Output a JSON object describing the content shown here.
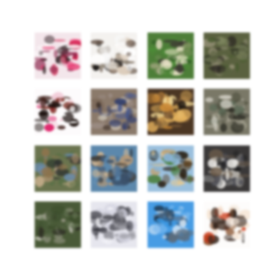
{
  "figure": {
    "description_name": "generated-samples-grid",
    "rows": 4,
    "cols": 4,
    "background": "#ffffff",
    "tiles": [
      {
        "id": "r1c1",
        "palette": [
          "#f4e9ee",
          "#c4123e",
          "#8a2d4f",
          "#e03d70",
          "#ffffff",
          "#3b2a2e"
        ],
        "base": "#f3e6eb"
      },
      {
        "id": "r1c2",
        "palette": [
          "#f7f7f7",
          "#1a1614",
          "#8d8275",
          "#d8c9b8",
          "#5d4a3e",
          "#ffffff"
        ],
        "base": "#f4f2ef"
      },
      {
        "id": "r1c3",
        "palette": [
          "#4f8a3a",
          "#2f5a24",
          "#b8b49b",
          "#e8e2c8",
          "#3d3a33",
          "#7a8f5c"
        ],
        "base": "#4f7d3b"
      },
      {
        "id": "r1c4",
        "palette": [
          "#5b6242",
          "#3a3f2c",
          "#7c8460",
          "#2d2a24",
          "#8f8c72",
          "#4b5c34"
        ],
        "base": "#5a6140"
      },
      {
        "id": "r2c1",
        "palette": [
          "#ffffff",
          "#d4135c",
          "#1b0f0c",
          "#7a2f24",
          "#f0c9d6",
          "#3a1a14"
        ],
        "base": "#fdfbfc"
      },
      {
        "id": "r2c2",
        "palette": [
          "#7c6a5c",
          "#4b5a8c",
          "#c8c0b4",
          "#3a2e28",
          "#9a8c84",
          "#2f3c6b"
        ],
        "base": "#8a7a6c"
      },
      {
        "id": "r2c3",
        "palette": [
          "#3b2a1c",
          "#c88a3c",
          "#e0b060",
          "#1f1812",
          "#7a5a38",
          "#f0d898"
        ],
        "base": "#4a3624"
      },
      {
        "id": "r2c4",
        "palette": [
          "#7c7c6c",
          "#4c4c3c",
          "#a4a090",
          "#2c2c24",
          "#d0cec4",
          "#5c6a58"
        ],
        "base": "#7a7868"
      },
      {
        "id": "r3c1",
        "palette": [
          "#5a7048",
          "#a89070",
          "#c8b090",
          "#2a2c2c",
          "#6c8cac",
          "#8c7450"
        ],
        "base": "#6a7450"
      },
      {
        "id": "r3c2",
        "palette": [
          "#6c94b4",
          "#4c6c8c",
          "#b49878",
          "#2c2c2c",
          "#d0b898",
          "#3c5068"
        ],
        "base": "#5e88aa"
      },
      {
        "id": "r3c3",
        "palette": [
          "#8cb4d4",
          "#2c2418",
          "#c0a070",
          "#5c4428",
          "#4c7c3c",
          "#e0c898"
        ],
        "base": "#9cc0dc"
      },
      {
        "id": "r3c4",
        "palette": [
          "#1c1c1c",
          "#d8d4cc",
          "#8c8c8c",
          "#4c4c54",
          "#f0eeea",
          "#6c5c4c"
        ],
        "base": "#3a3838"
      },
      {
        "id": "r4c1",
        "palette": [
          "#3c4c2c",
          "#6c7c5c",
          "#9c9c8c",
          "#2c2c24",
          "#c8c8bc",
          "#4c5c3c"
        ],
        "base": "#4a5a38"
      },
      {
        "id": "r4c2",
        "palette": [
          "#e8e8f0",
          "#2c2c34",
          "#8c8c94",
          "#d0d0dc",
          "#4c4c54",
          "#f8f8fc"
        ],
        "base": "#e6e6ee"
      },
      {
        "id": "r4c3",
        "palette": [
          "#3c94dc",
          "#7cb8ec",
          "#1c2c3c",
          "#5c6c7c",
          "#e8f0f8",
          "#2c4c6c"
        ],
        "base": "#4a9be0"
      },
      {
        "id": "r4c4",
        "palette": [
          "#ffffff",
          "#1c1410",
          "#c83c1c",
          "#8c5c3c",
          "#f4e4d4",
          "#3c2c24"
        ],
        "base": "#fdfcfb"
      }
    ]
  }
}
